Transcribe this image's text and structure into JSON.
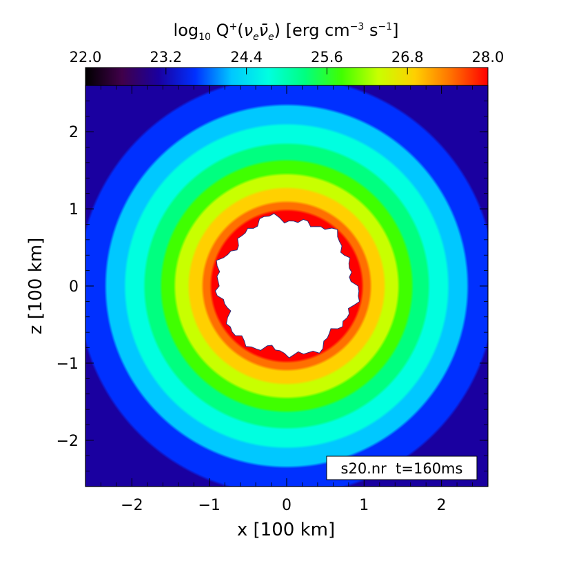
{
  "chart_data": {
    "type": "heatmap",
    "title": "log₁₀ Q⁺(νₑν̄ₑ) [erg cm⁻³ s⁻¹]",
    "title_parts": {
      "prefix": "log",
      "sub10": "10",
      "q": " Q",
      "qsup": "+",
      "paren_open": "(",
      "nu": "ν",
      "sub_e1": "e",
      "nubar": "ν̄",
      "sub_e2": "e",
      "paren_close": ")",
      "units_a": " [erg cm",
      "units_sup1": "−3",
      "units_b": " s",
      "units_sup2": "−1",
      "units_c": "]"
    },
    "colorbar": {
      "min": 22.0,
      "max": 28.0,
      "tick_values": [
        22.0,
        23.2,
        24.4,
        25.6,
        26.8,
        28.0
      ],
      "tick_labels": [
        "22.0",
        "23.2",
        "24.4",
        "25.6",
        "26.8",
        "28.0"
      ],
      "colors": [
        "#000000",
        "#40004a",
        "#1a00a0",
        "#0030ff",
        "#00c8ff",
        "#00ffe0",
        "#00ff80",
        "#40ff00",
        "#c8ff00",
        "#ffd000",
        "#ff7000",
        "#ff0000"
      ]
    },
    "xlabel": "x [100 km]",
    "ylabel": "z [100 km]",
    "xlim": [
      -2.6,
      2.6
    ],
    "ylim": [
      -2.6,
      2.6
    ],
    "x_ticks": [
      -2,
      -1,
      0,
      1,
      2
    ],
    "x_tick_labels": [
      "−2",
      "−1",
      "0",
      "1",
      "2"
    ],
    "y_ticks": [
      -2,
      -1,
      0,
      1,
      2
    ],
    "y_tick_labels": [
      "−2",
      "−1",
      "0",
      "1",
      "2"
    ],
    "field": {
      "description_value_at_r": [
        [
          0.9,
          28.0
        ],
        [
          1.2,
          26.8
        ],
        [
          1.6,
          25.6
        ],
        [
          2.0,
          24.6
        ],
        [
          2.5,
          23.6
        ],
        [
          3.0,
          23.0
        ]
      ],
      "inner_region_radius": 0.88,
      "inner_region_color": "#ffffff"
    },
    "annotation": "s20.nr  t=160ms"
  }
}
